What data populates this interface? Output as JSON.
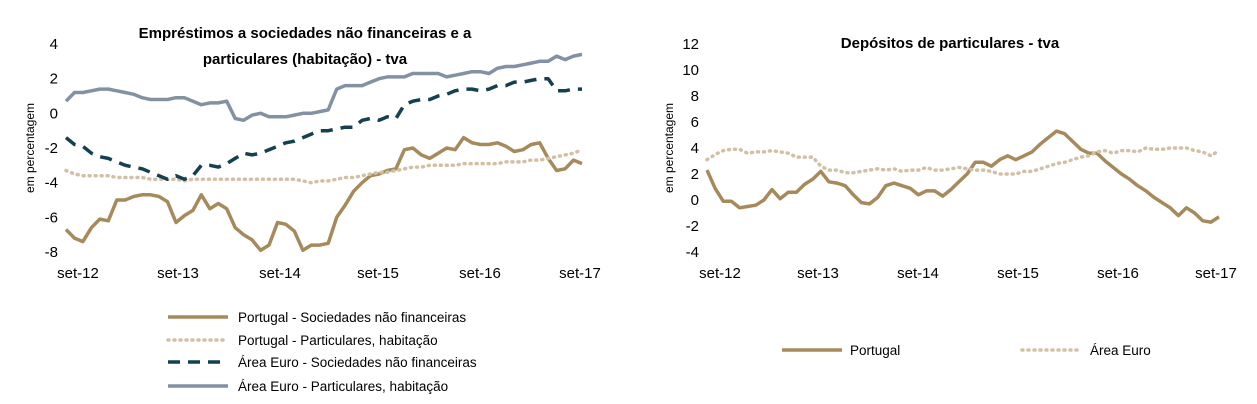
{
  "chart_data": [
    {
      "type": "line",
      "title": [
        "Empréstimos a sociedades não financeiras e a",
        "particulares (habitação) - tva"
      ],
      "ylabel": "em percentagem",
      "xlabel": "",
      "ylim": [
        -8,
        4
      ],
      "yticks": [
        4,
        2,
        0,
        -2,
        -4,
        -6,
        -8
      ],
      "x_tick_labels": [
        "set-12",
        "set-13",
        "set-14",
        "set-15",
        "set-16",
        "set-17"
      ],
      "grid": false,
      "legend_position": "bottom",
      "series": [
        {
          "name": "Portugal - Sociedades não financeiras",
          "style": "solid",
          "color": "#A68A5B",
          "values": [
            -6.7,
            -7.2,
            -7.4,
            -6.6,
            -6.1,
            -6.2,
            -5.0,
            -5.0,
            -4.8,
            -4.7,
            -4.7,
            -4.8,
            -5.1,
            -6.3,
            -5.9,
            -5.6,
            -4.7,
            -5.5,
            -5.2,
            -5.5,
            -6.6,
            -7.0,
            -7.3,
            -7.9,
            -7.6,
            -6.3,
            -6.4,
            -6.8,
            -7.9,
            -7.6,
            -7.6,
            -7.5,
            -6.0,
            -5.3,
            -4.5,
            -4.0,
            -3.6,
            -3.5,
            -3.3,
            -3.2,
            -2.1,
            -2.0,
            -2.4,
            -2.6,
            -2.3,
            -2.0,
            -2.1,
            -1.4,
            -1.7,
            -1.8,
            -1.8,
            -1.7,
            -1.9,
            -2.2,
            -2.1,
            -1.8,
            -1.7,
            -2.6,
            -3.3,
            -3.2,
            -2.7,
            -2.9
          ]
        },
        {
          "name": "Portugal - Particulares, habitação",
          "style": "dotted",
          "color": "#D2C0A6",
          "values": [
            -3.3,
            -3.5,
            -3.6,
            -3.6,
            -3.6,
            -3.6,
            -3.7,
            -3.7,
            -3.7,
            -3.7,
            -3.8,
            -3.8,
            -3.8,
            -3.8,
            -3.9,
            -3.8,
            -3.8,
            -3.8,
            -3.8,
            -3.8,
            -3.8,
            -3.8,
            -3.8,
            -3.8,
            -3.8,
            -3.8,
            -3.8,
            -3.8,
            -3.9,
            -4.0,
            -3.9,
            -3.9,
            -3.8,
            -3.7,
            -3.7,
            -3.6,
            -3.5,
            -3.4,
            -3.4,
            -3.3,
            -3.2,
            -3.1,
            -3.1,
            -3.0,
            -3.0,
            -3.0,
            -3.0,
            -2.9,
            -2.9,
            -2.9,
            -2.9,
            -2.9,
            -2.8,
            -2.8,
            -2.8,
            -2.7,
            -2.7,
            -2.6,
            -2.5,
            -2.4,
            -2.3,
            -2.1
          ]
        },
        {
          "name": "Área Euro - Sociedades não financeiras",
          "style": "dashed",
          "color": "#14414F",
          "values": [
            -1.4,
            -1.8,
            -1.9,
            -2.3,
            -2.5,
            -2.6,
            -2.8,
            -3.0,
            -3.1,
            -3.2,
            -3.4,
            -3.6,
            -3.8,
            -3.6,
            -3.8,
            -3.6,
            -3.0,
            -3.0,
            -3.1,
            -2.9,
            -2.6,
            -2.3,
            -2.4,
            -2.3,
            -2.1,
            -1.9,
            -1.7,
            -1.6,
            -1.4,
            -1.2,
            -1.0,
            -1.0,
            -0.9,
            -0.8,
            -0.8,
            -0.4,
            -0.3,
            -0.4,
            -0.2,
            -0.3,
            0.5,
            0.7,
            0.8,
            0.8,
            1.0,
            1.1,
            1.3,
            1.4,
            1.4,
            1.3,
            1.4,
            1.6,
            1.6,
            1.8,
            1.8,
            1.9,
            2.0,
            2.0,
            1.3,
            1.3,
            1.4,
            1.4
          ]
        },
        {
          "name": "Área Euro - Particulares, habitação",
          "style": "solid",
          "color": "#8292A4",
          "values": [
            0.7,
            1.2,
            1.2,
            1.3,
            1.4,
            1.4,
            1.3,
            1.2,
            1.1,
            0.9,
            0.8,
            0.8,
            0.8,
            0.9,
            0.9,
            0.7,
            0.5,
            0.6,
            0.6,
            0.7,
            -0.3,
            -0.4,
            -0.1,
            0.0,
            -0.2,
            -0.2,
            -0.2,
            -0.1,
            0.0,
            0.0,
            0.1,
            0.2,
            1.4,
            1.6,
            1.6,
            1.6,
            1.8,
            2.0,
            2.1,
            2.1,
            2.1,
            2.3,
            2.3,
            2.3,
            2.3,
            2.1,
            2.2,
            2.3,
            2.4,
            2.4,
            2.3,
            2.6,
            2.7,
            2.7,
            2.8,
            2.9,
            3.0,
            3.0,
            3.3,
            3.1,
            3.3,
            3.4
          ]
        }
      ]
    },
    {
      "type": "line",
      "title": [
        "Depósitos de particulares - tva"
      ],
      "ylabel": "em percentagem",
      "xlabel": "",
      "ylim": [
        -4,
        12
      ],
      "yticks": [
        12,
        10,
        8,
        6,
        4,
        2,
        0,
        -2,
        -4
      ],
      "x_tick_labels": [
        "set-12",
        "set-13",
        "set-14",
        "set-15",
        "set-16",
        "set-17"
      ],
      "grid": false,
      "legend_position": "bottom",
      "series": [
        {
          "name": "Portugal",
          "style": "solid",
          "color": "#A68A5B",
          "values": [
            2.3,
            0.9,
            -0.1,
            -0.1,
            -0.6,
            -0.5,
            -0.4,
            0.0,
            0.8,
            0.1,
            0.6,
            0.6,
            1.2,
            1.6,
            2.2,
            1.4,
            1.3,
            1.1,
            0.4,
            -0.2,
            -0.3,
            0.2,
            1.1,
            1.3,
            1.1,
            0.9,
            0.4,
            0.7,
            0.7,
            0.3,
            0.8,
            1.4,
            2.0,
            2.9,
            2.9,
            2.6,
            3.1,
            3.4,
            3.1,
            3.4,
            3.7,
            4.3,
            4.8,
            5.3,
            5.1,
            4.5,
            3.9,
            3.6,
            3.6,
            3.0,
            2.5,
            2.0,
            1.6,
            1.1,
            0.7,
            0.2,
            -0.2,
            -0.6,
            -1.2,
            -0.6,
            -1.0,
            -1.6,
            -1.7,
            -1.3
          ]
        },
        {
          "name": "Área Euro",
          "style": "dotted",
          "color": "#D2C0A6",
          "values": [
            3.1,
            3.5,
            3.8,
            3.9,
            3.9,
            3.6,
            3.7,
            3.7,
            3.8,
            3.7,
            3.6,
            3.3,
            3.3,
            3.3,
            2.6,
            2.3,
            2.3,
            2.1,
            2.1,
            2.2,
            2.3,
            2.4,
            2.3,
            2.4,
            2.2,
            2.3,
            2.3,
            2.5,
            2.3,
            2.3,
            2.4,
            2.5,
            2.4,
            2.3,
            2.3,
            2.2,
            2.0,
            2.0,
            2.0,
            2.2,
            2.2,
            2.4,
            2.6,
            2.8,
            2.9,
            3.1,
            3.3,
            3.4,
            3.7,
            3.8,
            3.6,
            3.8,
            3.8,
            3.7,
            4.0,
            3.9,
            3.9,
            4.0,
            4.0,
            4.0,
            3.8,
            3.7,
            3.4,
            3.8
          ]
        }
      ]
    }
  ]
}
